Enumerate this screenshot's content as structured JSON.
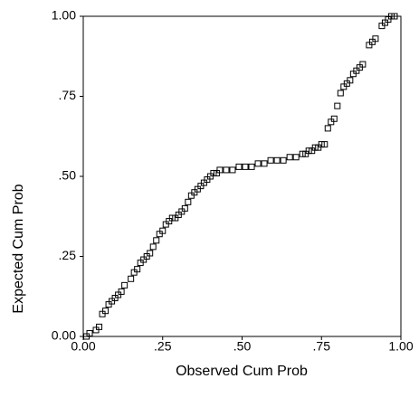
{
  "chart_data": {
    "type": "scatter",
    "x_label": "Observed Cum Prob",
    "y_label": "Expected Cum Prob",
    "x": [
      0.01,
      0.02,
      0.04,
      0.05,
      0.06,
      0.07,
      0.08,
      0.09,
      0.1,
      0.11,
      0.12,
      0.13,
      0.15,
      0.16,
      0.17,
      0.18,
      0.19,
      0.2,
      0.21,
      0.22,
      0.23,
      0.24,
      0.25,
      0.26,
      0.27,
      0.28,
      0.29,
      0.3,
      0.31,
      0.32,
      0.33,
      0.34,
      0.35,
      0.36,
      0.37,
      0.38,
      0.39,
      0.4,
      0.41,
      0.42,
      0.43,
      0.45,
      0.47,
      0.49,
      0.51,
      0.53,
      0.55,
      0.57,
      0.59,
      0.61,
      0.63,
      0.65,
      0.67,
      0.69,
      0.7,
      0.71,
      0.72,
      0.73,
      0.74,
      0.75,
      0.76,
      0.77,
      0.78,
      0.79,
      0.8,
      0.81,
      0.82,
      0.83,
      0.84,
      0.85,
      0.86,
      0.87,
      0.88,
      0.9,
      0.91,
      0.92,
      0.94,
      0.95,
      0.96,
      0.97,
      0.98
    ],
    "y": [
      0.0,
      0.01,
      0.02,
      0.03,
      0.07,
      0.08,
      0.1,
      0.11,
      0.12,
      0.13,
      0.14,
      0.16,
      0.18,
      0.2,
      0.21,
      0.23,
      0.24,
      0.25,
      0.26,
      0.28,
      0.3,
      0.32,
      0.33,
      0.35,
      0.36,
      0.37,
      0.37,
      0.38,
      0.39,
      0.4,
      0.42,
      0.44,
      0.45,
      0.46,
      0.47,
      0.48,
      0.49,
      0.5,
      0.51,
      0.51,
      0.52,
      0.52,
      0.52,
      0.53,
      0.53,
      0.53,
      0.54,
      0.54,
      0.55,
      0.55,
      0.55,
      0.56,
      0.56,
      0.57,
      0.57,
      0.58,
      0.58,
      0.59,
      0.59,
      0.6,
      0.6,
      0.65,
      0.67,
      0.68,
      0.72,
      0.76,
      0.78,
      0.79,
      0.8,
      0.82,
      0.83,
      0.84,
      0.85,
      0.91,
      0.92,
      0.93,
      0.97,
      0.98,
      0.99,
      1.0,
      1.0
    ],
    "color": "#000000",
    "xlim": [
      0,
      1
    ],
    "ylim": [
      0,
      1
    ],
    "xticks": [
      {
        "value": 0,
        "label": "0.00"
      },
      {
        "value": 0.25,
        "label": ".25"
      },
      {
        "value": 0.5,
        "label": ".50"
      },
      {
        "value": 0.75,
        "label": ".75"
      },
      {
        "value": 1,
        "label": "1.00"
      }
    ],
    "yticks": [
      {
        "value": 0,
        "label": "0.00"
      },
      {
        "value": 0.25,
        "label": ".25"
      },
      {
        "value": 0.5,
        "label": ".50"
      },
      {
        "value": 0.75,
        "label": ".75"
      },
      {
        "value": 1,
        "label": "1.00"
      }
    ]
  }
}
